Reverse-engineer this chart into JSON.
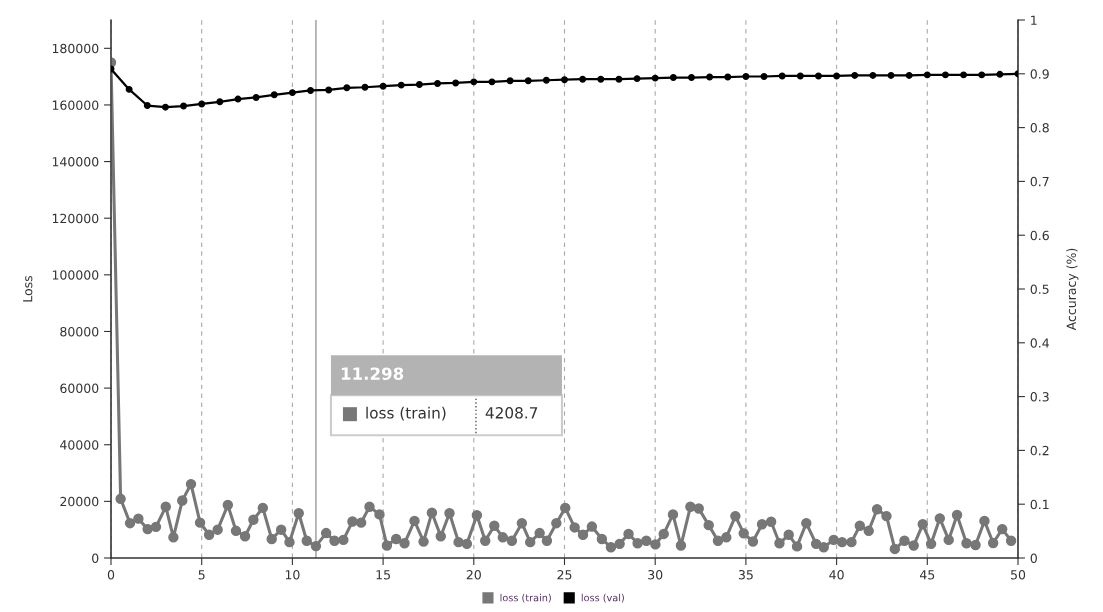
{
  "chart_data": {
    "type": "line",
    "ylabel": "Loss",
    "y2label": "Accuracy (%)",
    "xlim": [
      0,
      50
    ],
    "xticks": [
      0,
      5,
      10,
      15,
      20,
      25,
      30,
      35,
      40,
      45,
      50
    ],
    "ylim": [
      0,
      190000
    ],
    "yticks": [
      0,
      20000,
      40000,
      60000,
      80000,
      100000,
      120000,
      140000,
      160000,
      180000
    ],
    "y2lim": [
      0,
      1
    ],
    "y2ticks": [
      0,
      0.1,
      0.2,
      0.3,
      0.4,
      0.5,
      0.6,
      0.7,
      0.8,
      0.9,
      1
    ],
    "grid": "x",
    "legend": "bottom",
    "marker": "circle",
    "line_style": "solid",
    "ref_lines": [
      {
        "axis": "x",
        "value": 11.298,
        "color": "#999999"
      }
    ],
    "annotations": [
      "11.298",
      "loss (train)",
      "4208.7"
    ],
    "series": [
      {
        "name": "loss (train)",
        "color": "#777777",
        "x": [
          0,
          0.53,
          1.05,
          1.51,
          2.02,
          2.48,
          3.02,
          3.44,
          3.93,
          4.41,
          4.91,
          5.41,
          5.88,
          6.44,
          6.89,
          7.39,
          7.85,
          8.37,
          8.86,
          9.38,
          9.84,
          10.35,
          10.79,
          11.298,
          11.86,
          12.32,
          12.81,
          13.31,
          13.79,
          14.25,
          14.8,
          15.21,
          15.72,
          16.18,
          16.73,
          17.23,
          17.69,
          18.18,
          18.66,
          19.16,
          19.62,
          20.17,
          20.63,
          21.13,
          21.6,
          22.1,
          22.65,
          23.11,
          23.63,
          24.03,
          24.55,
          25.04,
          25.56,
          26.02,
          26.51,
          27.06,
          27.56,
          28.04,
          28.53,
          29.03,
          29.51,
          30.01,
          30.47,
          30.98,
          31.42,
          31.94,
          32.4,
          32.95,
          33.46,
          33.92,
          34.42,
          34.88,
          35.39,
          35.89,
          36.39,
          36.85,
          37.36,
          37.82,
          38.33,
          38.87,
          39.29,
          39.84,
          40.3,
          40.82,
          41.28,
          41.77,
          42.23,
          42.75,
          43.21,
          43.74,
          44.25,
          44.75,
          45.21,
          45.69,
          46.18,
          46.64,
          47.16,
          47.66,
          48.15,
          48.63,
          49.13,
          49.62
        ],
        "values": [
          175000,
          20900,
          12300,
          13900,
          10200,
          11000,
          18100,
          7300,
          20300,
          26100,
          12500,
          8200,
          10000,
          18700,
          9600,
          7700,
          13500,
          17700,
          6700,
          10000,
          5600,
          15800,
          6100,
          4200,
          8800,
          6100,
          6400,
          12900,
          12500,
          18100,
          15400,
          4400,
          6700,
          5200,
          13100,
          5800,
          16000,
          7700,
          15800,
          5600,
          5000,
          15100,
          6100,
          11400,
          7300,
          6100,
          12300,
          5600,
          8800,
          6100,
          12300,
          17700,
          10800,
          8200,
          11100,
          6700,
          3800,
          5000,
          8500,
          5200,
          6100,
          4800,
          8500,
          15400,
          4400,
          18100,
          17500,
          11600,
          6100,
          7300,
          14800,
          8700,
          5800,
          11900,
          12800,
          5200,
          8200,
          4100,
          12300,
          5000,
          3800,
          6400,
          5600,
          5600,
          11400,
          9600,
          17200,
          14800,
          3200,
          6100,
          4400,
          11900,
          5000,
          14000,
          6400,
          15200,
          5200,
          4600,
          13100,
          5300,
          10200,
          6100
        ]
      },
      {
        "name": "loss (val)",
        "color": "#000000",
        "axis": "y2",
        "x": [
          0,
          1,
          2,
          3,
          4,
          5,
          6,
          7,
          8,
          9,
          10,
          11,
          12,
          13,
          14,
          15,
          16,
          17,
          18,
          19,
          20,
          21,
          22,
          23,
          24,
          25,
          26,
          27,
          28,
          29,
          30,
          31,
          32,
          33,
          34,
          35,
          36,
          37,
          38,
          39,
          40,
          41,
          42,
          43,
          44,
          45,
          46,
          47,
          48,
          49,
          50
        ],
        "values": [
          0.909,
          0.871,
          0.841,
          0.838,
          0.84,
          0.844,
          0.848,
          0.853,
          0.856,
          0.861,
          0.865,
          0.869,
          0.87,
          0.874,
          0.875,
          0.877,
          0.879,
          0.88,
          0.882,
          0.883,
          0.885,
          0.885,
          0.887,
          0.887,
          0.888,
          0.889,
          0.89,
          0.89,
          0.89,
          0.891,
          0.892,
          0.893,
          0.893,
          0.894,
          0.894,
          0.895,
          0.895,
          0.896,
          0.896,
          0.896,
          0.896,
          0.897,
          0.897,
          0.897,
          0.897,
          0.898,
          0.898,
          0.898,
          0.898,
          0.899,
          0.9
        ]
      }
    ]
  }
}
